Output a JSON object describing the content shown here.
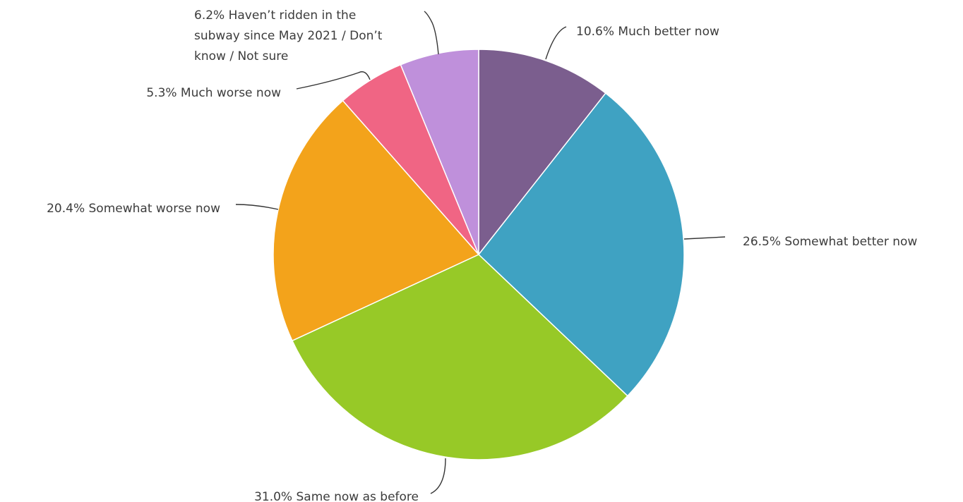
{
  "chart_data": {
    "type": "pie",
    "title": "",
    "start": "top",
    "direction": "clockwise",
    "legend": "none",
    "slices": [
      {
        "label": "Much better now",
        "value": 10.6,
        "text": "10.6% Much better now",
        "color": "#7b5e8e"
      },
      {
        "label": "Somewhat better now",
        "value": 26.5,
        "text": "26.5% Somewhat better now",
        "color": "#3fa2c2"
      },
      {
        "label": "Same now as before",
        "value": 31.0,
        "text": "31.0% Same now as before",
        "color": "#97c927"
      },
      {
        "label": "Somewhat worse now",
        "value": 20.4,
        "text": "20.4% Somewhat worse now",
        "color": "#f3a31b"
      },
      {
        "label": "Much worse now",
        "value": 5.3,
        "text": "5.3% Much worse now",
        "color": "#f06584"
      },
      {
        "label": "Haven't ridden in the subway since May 2021 / Don't know / Not sure",
        "value": 6.2,
        "text": [
          "6.2% Haven’t ridden in the",
          "subway since May 2021 / Don’t",
          "know / Not sure"
        ],
        "color": "#bf90db"
      }
    ]
  }
}
